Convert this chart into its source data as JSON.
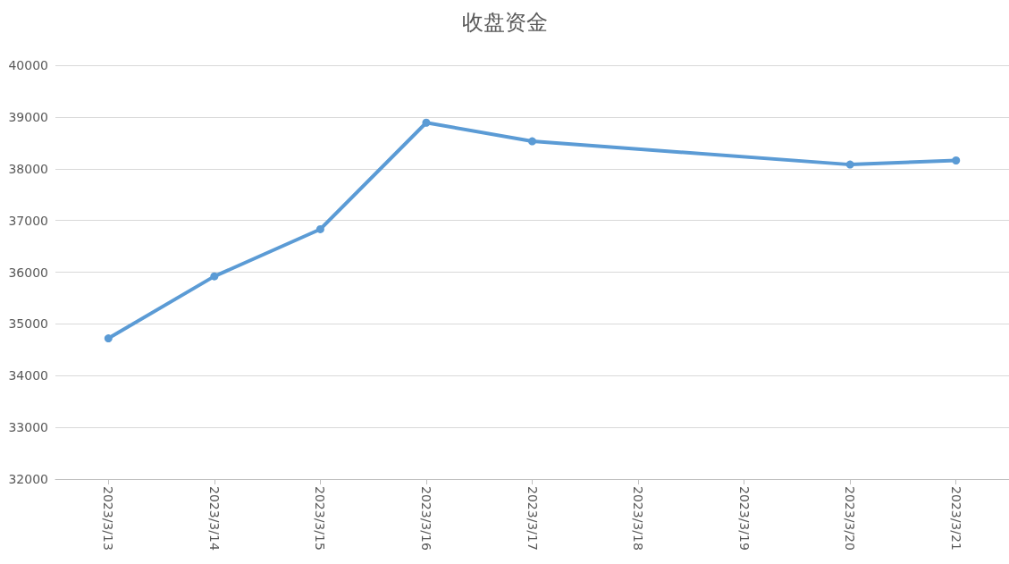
{
  "chart_data": {
    "type": "line",
    "title": "收盘资金",
    "x": [
      "2023-03-13",
      "2023-03-14",
      "2023-03-15",
      "2023-03-16",
      "2023-03-17",
      "2023-03-20",
      "2023-03-21"
    ],
    "series": [
      {
        "color": "#5b9bd5",
        "values": [
          34720,
          35920,
          36830,
          38890,
          38530,
          38080,
          38160
        ]
      }
    ],
    "xlim": [
      "2023-03-12T12:00",
      "2023-03-21T12:00"
    ],
    "xticks": [
      {
        "value": "2023-03-13",
        "label": "2023/3/13"
      },
      {
        "value": "2023-03-14",
        "label": "2023/3/14"
      },
      {
        "value": "2023-03-15",
        "label": "2023/3/15"
      },
      {
        "value": "2023-03-16",
        "label": "2023/3/16"
      },
      {
        "value": "2023-03-17",
        "label": "2023/3/17"
      },
      {
        "value": "2023-03-18",
        "label": "2023/3/18"
      },
      {
        "value": "2023-03-19",
        "label": "2023/3/19"
      },
      {
        "value": "2023-03-20",
        "label": "2023/3/20"
      },
      {
        "value": "2023-03-21",
        "label": "2023/3/21"
      }
    ],
    "ylim": [
      32000,
      40000
    ],
    "yticks": [
      32000,
      33000,
      34000,
      35000,
      36000,
      37000,
      38000,
      39000,
      40000
    ],
    "grid": "y",
    "marker": "circle",
    "line_style": "solid"
  }
}
